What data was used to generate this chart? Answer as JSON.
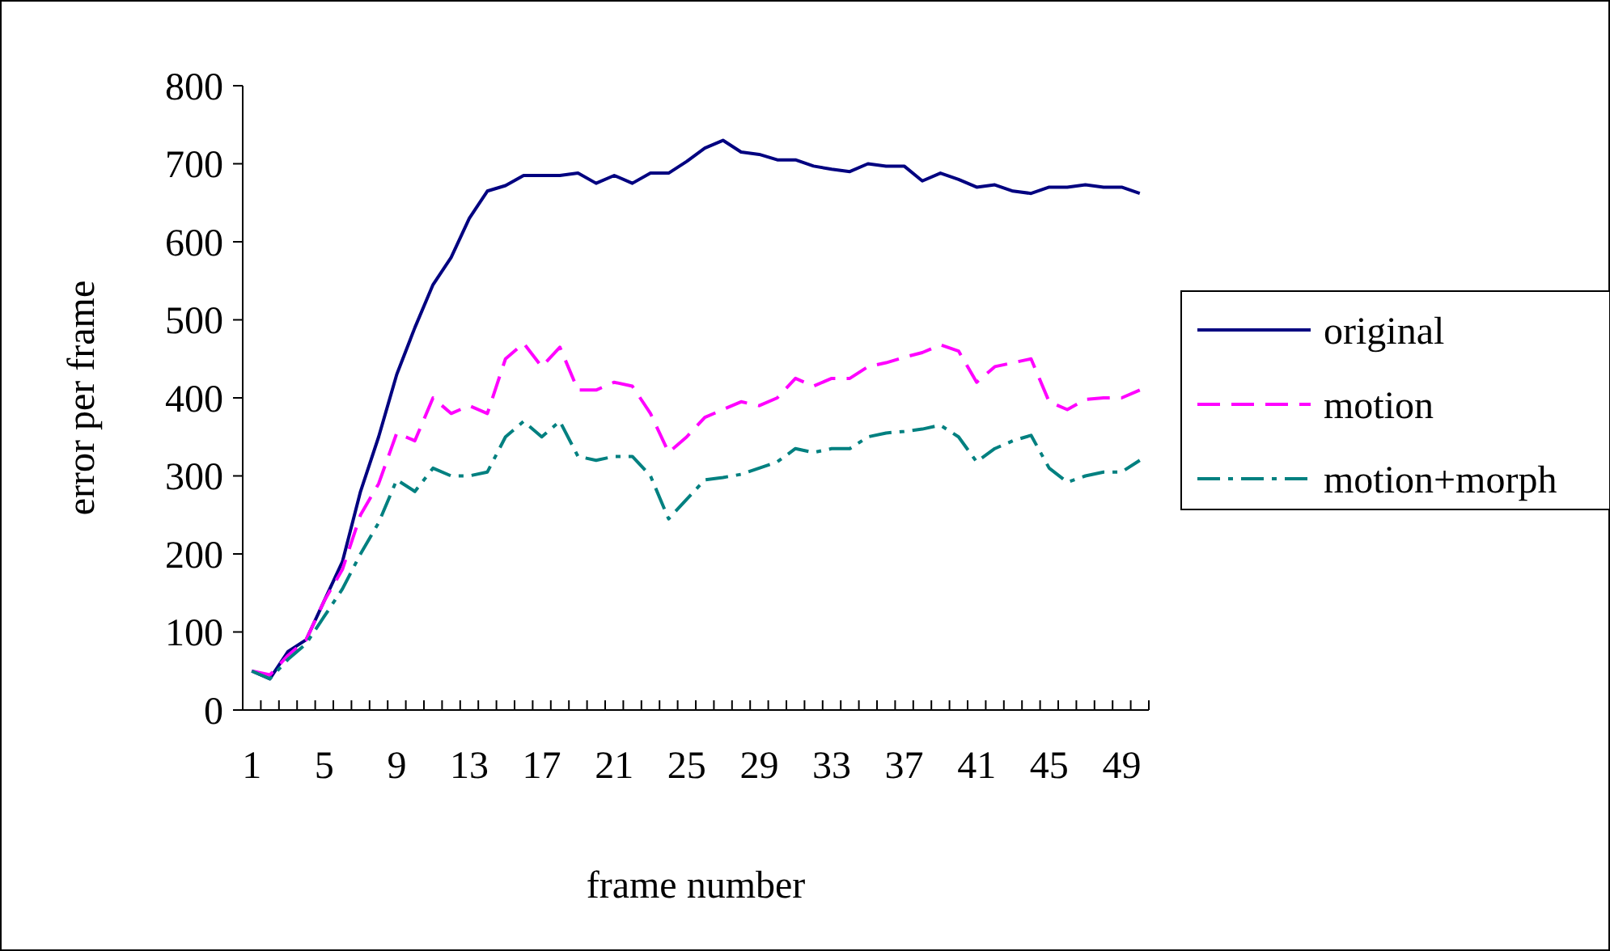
{
  "chart_data": {
    "type": "line",
    "xlabel": "frame number",
    "ylabel": "error per frame",
    "categories": [
      "1",
      null,
      null,
      null,
      "5",
      null,
      null,
      null,
      "9",
      null,
      null,
      null,
      "13",
      null,
      null,
      null,
      "17",
      null,
      null,
      null,
      "21",
      null,
      null,
      null,
      "25",
      null,
      null,
      null,
      "29",
      null,
      null,
      null,
      "33",
      null,
      null,
      null,
      "37",
      null,
      null,
      null,
      "41",
      null,
      null,
      null,
      "45",
      null,
      null,
      null,
      "49",
      null
    ],
    "ylim": [
      0,
      800
    ],
    "yticks": [
      0,
      100,
      200,
      300,
      400,
      500,
      600,
      700,
      800
    ],
    "grid": false,
    "legend": "right",
    "series": [
      {
        "name": "original",
        "color": "#000080",
        "line_style": "solid",
        "values": [
          50,
          40,
          75,
          90,
          140,
          190,
          280,
          350,
          430,
          490,
          545,
          580,
          630,
          665,
          672,
          685,
          685,
          685,
          688,
          675,
          685,
          675,
          688,
          688,
          703,
          720,
          730,
          715,
          712,
          705,
          705,
          697,
          693,
          690,
          700,
          697,
          697,
          678,
          688,
          680,
          670,
          673,
          665,
          662,
          670,
          670,
          673,
          670,
          670,
          662
        ]
      },
      {
        "name": "motion",
        "color": "#ff00ff",
        "line_style": "dashed",
        "values": [
          50,
          45,
          70,
          90,
          140,
          180,
          250,
          290,
          355,
          345,
          400,
          380,
          390,
          380,
          450,
          470,
          440,
          465,
          410,
          410,
          420,
          415,
          380,
          330,
          350,
          375,
          385,
          395,
          390,
          400,
          425,
          415,
          425,
          425,
          440,
          445,
          452,
          458,
          468,
          460,
          420,
          440,
          445,
          450,
          395,
          385,
          398,
          400,
          400,
          410
        ]
      },
      {
        "name": "motion+morph",
        "color": "#008080",
        "line_style": "dashdot",
        "values": [
          50,
          40,
          65,
          85,
          120,
          155,
          200,
          240,
          295,
          280,
          310,
          300,
          300,
          305,
          350,
          370,
          350,
          370,
          325,
          320,
          325,
          325,
          300,
          245,
          270,
          295,
          298,
          302,
          310,
          318,
          335,
          330,
          335,
          335,
          350,
          355,
          357,
          360,
          365,
          350,
          318,
          335,
          345,
          352,
          310,
          292,
          300,
          305,
          305,
          320
        ]
      }
    ]
  }
}
